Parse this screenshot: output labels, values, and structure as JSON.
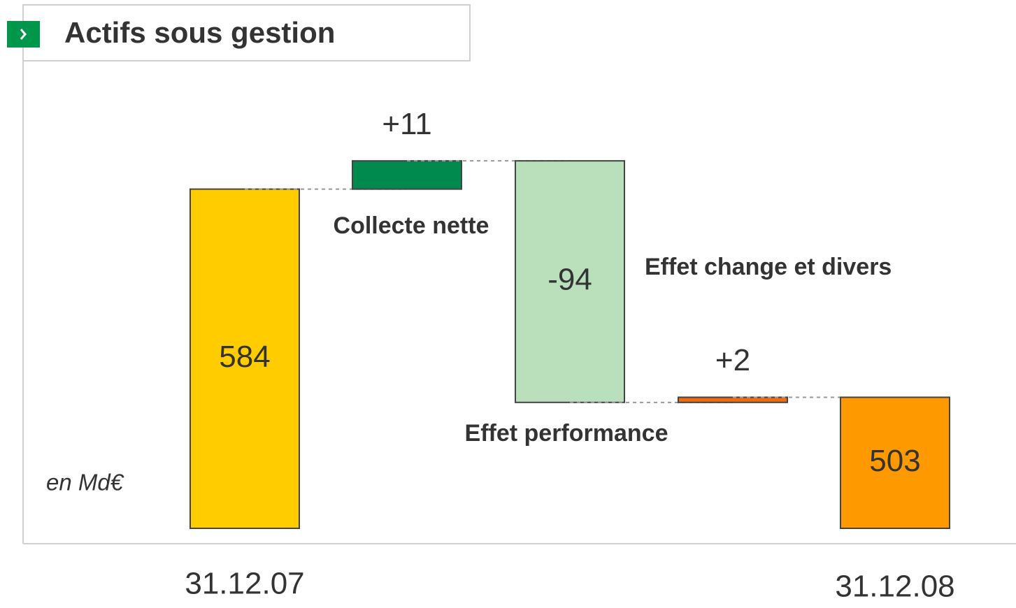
{
  "chart_data": {
    "type": "waterfall",
    "title": "Actifs sous gestion",
    "unit_note": "en Md€",
    "categories": [
      "31.12.07",
      "Collecte nette",
      "Effet performance",
      "Effet change et divers",
      "31.12.08"
    ],
    "values": [
      584,
      11,
      -94,
      2,
      503
    ],
    "value_labels": [
      "584",
      "+11",
      "-94",
      "+2",
      "503"
    ],
    "totals": [
      true,
      false,
      false,
      false,
      true
    ],
    "colors": [
      "#ffcc00",
      "#008a4e",
      "#b9dfbb",
      "#f06a10",
      "#ff9900"
    ],
    "ylim": [
      452,
      610
    ]
  }
}
